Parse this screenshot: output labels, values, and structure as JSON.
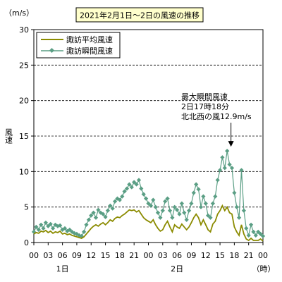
{
  "chart_data": {
    "type": "line",
    "title": "2021年2月1日～2日の風速の推移",
    "y_unit": "（m/s）",
    "ylabel": "風速",
    "ylim": [
      0,
      30
    ],
    "y_ticks": [
      0,
      5,
      10,
      15,
      20,
      25,
      30
    ],
    "xlim_hours": [
      0,
      48
    ],
    "x_tick_labels": [
      "00",
      "03",
      "06",
      "09",
      "12",
      "15",
      "18",
      "21",
      "00",
      "03",
      "06",
      "09",
      "12",
      "15",
      "18",
      "21",
      "00"
    ],
    "x_unit": "（時）",
    "day_labels": [
      "1日",
      "2日"
    ],
    "grid": "horizontal dashed at 5, 10, 15, 20, 25",
    "legend_position": "top-left",
    "annotation": {
      "lines": [
        "最大瞬間風速",
        "2日17時18分",
        "北北西の風12.9m/s"
      ],
      "x_hours": 41.3,
      "y": 12.9
    },
    "series": [
      {
        "name": "諏訪平均風速",
        "color": "#8b8b00",
        "interval_minutes": 30,
        "values": [
          1.2,
          1.4,
          1.3,
          1.6,
          1.5,
          1.7,
          1.4,
          1.6,
          1.3,
          1.5,
          1.4,
          1.6,
          1.2,
          1.3,
          1.1,
          1.2,
          1.0,
          0.9,
          0.8,
          0.7,
          0.6,
          0.8,
          1.2,
          1.6,
          2.0,
          2.3,
          2.5,
          2.3,
          2.6,
          2.8,
          2.5,
          2.8,
          3.2,
          3.0,
          3.4,
          3.6,
          3.5,
          3.8,
          4.0,
          4.3,
          4.6,
          4.5,
          4.6,
          4.3,
          4.5,
          4.0,
          3.5,
          3.2,
          3.0,
          2.8,
          3.2,
          2.5,
          2.0,
          1.6,
          1.8,
          2.5,
          3.0,
          2.2,
          1.5,
          2.5,
          2.2,
          2.0,
          2.6,
          2.2,
          1.8,
          2.2,
          2.8,
          3.5,
          4.0,
          3.5,
          2.5,
          3.2,
          2.5,
          1.8,
          1.5,
          2.6,
          3.0,
          4.0,
          4.5,
          5.2,
          4.5,
          5.0,
          4.2,
          4.0,
          2.2,
          1.5,
          1.0,
          2.5,
          1.2,
          0.5,
          0.3,
          0.6,
          0.3,
          0.3,
          0.3,
          0.5,
          0.2
        ]
      },
      {
        "name": "諏訪瞬間風速",
        "color": "#5a9e84",
        "interval_minutes": 30,
        "values": [
          1.5,
          2.2,
          1.8,
          2.5,
          2.0,
          2.8,
          2.3,
          2.6,
          2.0,
          2.5,
          2.3,
          2.4,
          1.8,
          2.0,
          1.6,
          1.8,
          1.5,
          1.3,
          1.2,
          1.0,
          0.9,
          1.5,
          2.5,
          3.2,
          3.8,
          4.2,
          3.5,
          4.6,
          4.2,
          4.0,
          3.6,
          4.5,
          5.2,
          4.8,
          5.8,
          6.2,
          6.0,
          6.5,
          7.2,
          7.6,
          8.2,
          7.8,
          8.5,
          8.2,
          8.8,
          7.6,
          6.8,
          6.2,
          5.5,
          5.2,
          6.0,
          5.0,
          4.2,
          3.5,
          4.5,
          5.8,
          6.2,
          4.5,
          3.5,
          5.0,
          4.6,
          4.0,
          5.5,
          4.2,
          3.2,
          4.5,
          5.5,
          7.0,
          8.2,
          7.5,
          5.0,
          6.5,
          5.5,
          3.8,
          3.5,
          5.5,
          6.5,
          8.8,
          10.2,
          12.0,
          10.5,
          12.9,
          11.0,
          10.5,
          7.0,
          5.0,
          3.5,
          10.2,
          4.5,
          2.0,
          1.0,
          2.5,
          1.5,
          1.0,
          1.5,
          1.2,
          0.9
        ]
      }
    ]
  }
}
